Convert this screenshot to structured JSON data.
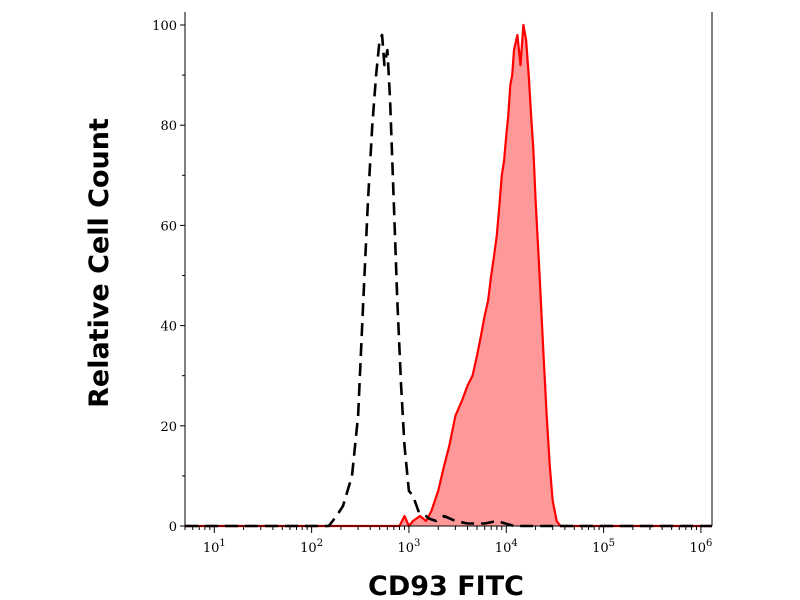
{
  "chart_data": {
    "type": "area",
    "title": "",
    "xlabel": "CD93 FITC",
    "ylabel": "Relative Cell Count",
    "xscale": "log",
    "xlim": [
      5,
      1300000
    ],
    "ylim": [
      0,
      100
    ],
    "grid": false,
    "legend": "none",
    "x_ticks": [
      {
        "value": 10,
        "base": "10",
        "exp": "1"
      },
      {
        "value": 100,
        "base": "10",
        "exp": "2"
      },
      {
        "value": 1000,
        "base": "10",
        "exp": "3"
      },
      {
        "value": 10000,
        "base": "10",
        "exp": "4"
      },
      {
        "value": 100000,
        "base": "10",
        "exp": "5"
      },
      {
        "value": 1000000,
        "base": "10",
        "exp": "6"
      }
    ],
    "y_ticks": [
      {
        "value": 0,
        "label": "0"
      },
      {
        "value": 20,
        "label": "20"
      },
      {
        "value": 40,
        "label": "40"
      },
      {
        "value": 60,
        "label": "60"
      },
      {
        "value": 80,
        "label": "80"
      },
      {
        "value": 100,
        "label": "100"
      }
    ],
    "series": [
      {
        "style": "dashed-line",
        "color": "#000000",
        "x": [
          5,
          100,
          150,
          180,
          210,
          260,
          300,
          340,
          380,
          420,
          460,
          500,
          530,
          560,
          600,
          640,
          700,
          760,
          830,
          900,
          1000,
          1100,
          1250,
          1400,
          1600,
          1900,
          2300,
          3000,
          4000,
          6000,
          8000,
          12000,
          1300000
        ],
        "y": [
          0,
          0,
          0,
          2,
          4,
          10,
          22,
          45,
          65,
          80,
          90,
          97,
          98,
          92,
          95,
          85,
          64,
          45,
          28,
          16,
          7,
          6,
          3,
          2.5,
          1.5,
          1,
          2,
          1,
          0.5,
          0.5,
          1,
          0,
          0
        ]
      },
      {
        "style": "filled-area",
        "color": "#ff0000",
        "fill": "#ff9999",
        "x": [
          5,
          800,
          900,
          1000,
          1100,
          1300,
          1500,
          1700,
          2000,
          2300,
          2600,
          3000,
          3500,
          4000,
          4500,
          5000,
          5500,
          6000,
          6500,
          7000,
          7500,
          8000,
          8500,
          9000,
          9500,
          10000,
          10500,
          11000,
          11500,
          12000,
          13000,
          14000,
          15000,
          16000,
          17000,
          18000,
          19000,
          20000,
          22000,
          24000,
          26000,
          28000,
          30000,
          33000,
          36000,
          1300000
        ],
        "y": [
          0,
          0,
          2,
          0,
          1,
          2,
          1,
          3,
          7,
          12,
          16,
          22,
          25,
          28,
          30,
          34,
          38,
          42,
          45,
          50,
          54,
          58,
          64,
          70,
          73,
          78,
          82,
          88,
          90,
          95,
          98,
          92,
          100,
          97,
          90,
          82,
          75,
          65,
          50,
          35,
          22,
          12,
          5,
          1,
          0,
          0
        ]
      }
    ]
  }
}
